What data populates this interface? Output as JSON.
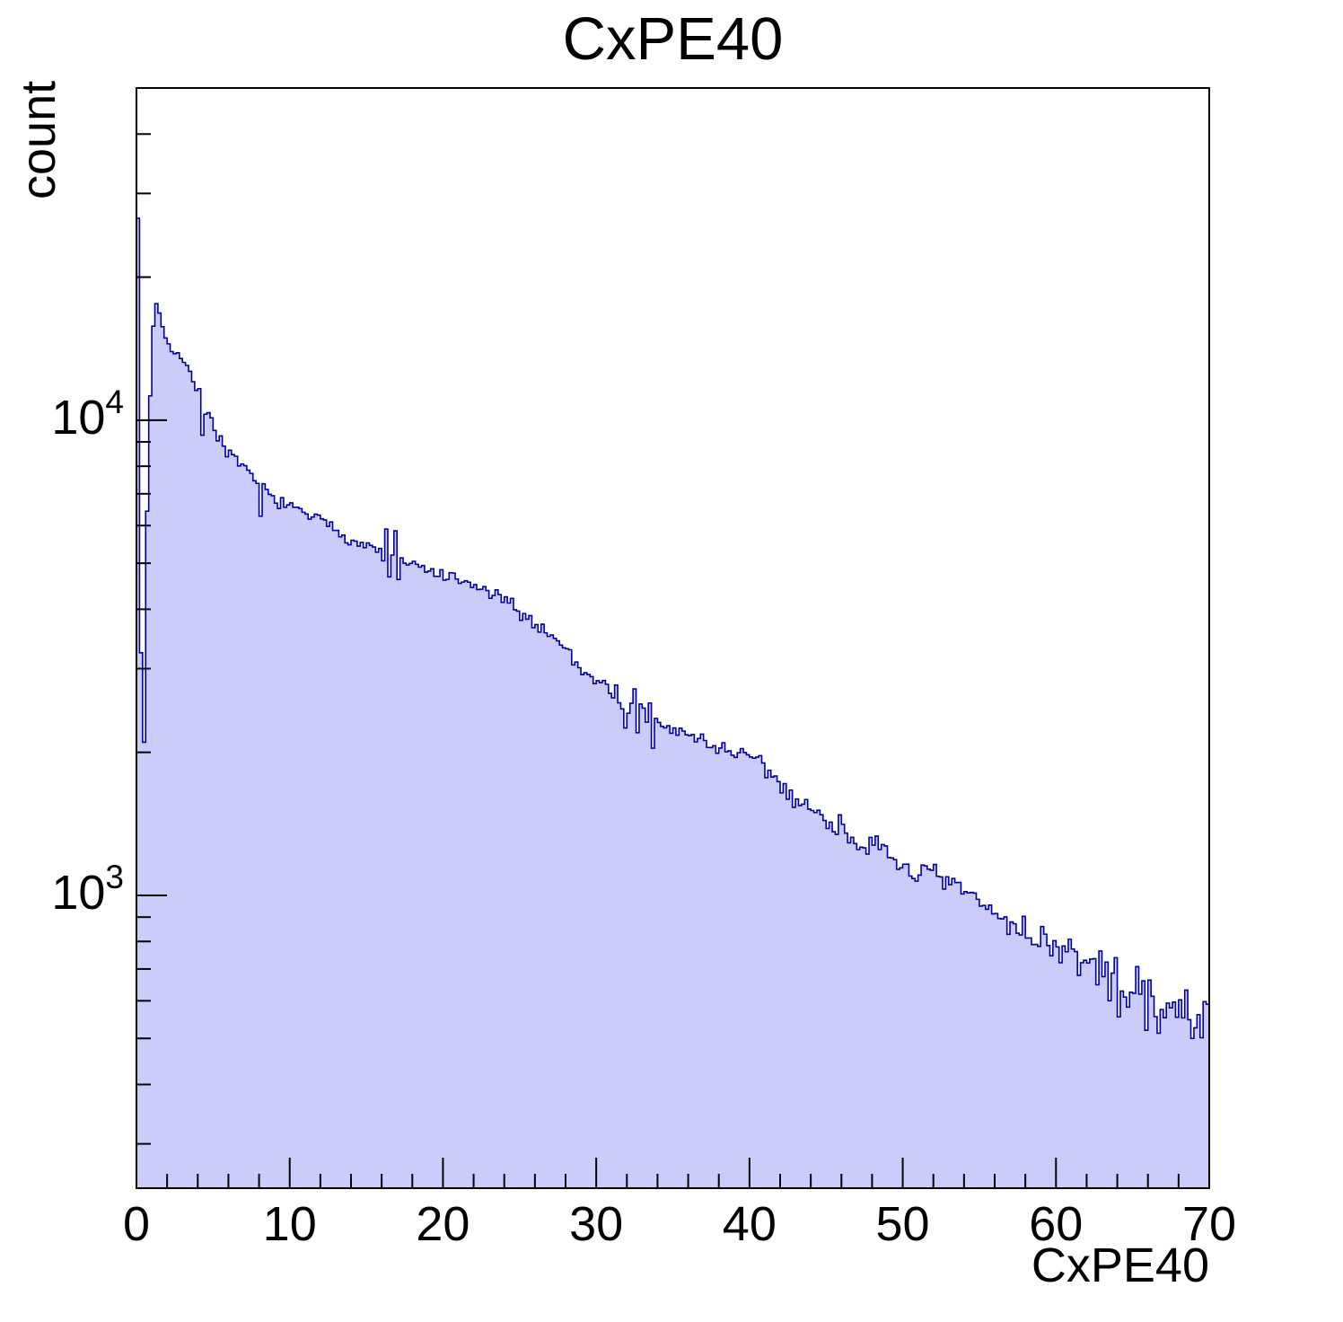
{
  "chart_data": {
    "type": "histogram",
    "title": "CxPE40",
    "xlabel": "CxPE40",
    "ylabel": "count",
    "x_range": [
      0,
      70
    ],
    "bin_width": 0.2,
    "y_scale": "log",
    "y_range": [
      242,
      50000
    ],
    "grid": false,
    "legend": false,
    "x_major_ticks": [
      0,
      10,
      20,
      30,
      40,
      50,
      60,
      70
    ],
    "x_minor_tick_step": 2,
    "y_major_ticks": [
      {
        "value": 1000,
        "label_base": "10",
        "label_exp": "3"
      },
      {
        "value": 10000,
        "label_base": "10",
        "label_exp": "4"
      }
    ],
    "colors": {
      "fill": "#ccccfa",
      "line": "#000099",
      "axis": "#000000",
      "text": "#000000",
      "background": "#ffffff"
    },
    "envelope_points": [
      [
        0.55,
        4500
      ],
      [
        0.7,
        6500
      ],
      [
        0.85,
        9800
      ],
      [
        1.0,
        14500
      ],
      [
        1.2,
        17600
      ],
      [
        1.45,
        17300
      ],
      [
        1.6,
        16300
      ],
      [
        1.9,
        14800
      ],
      [
        2.2,
        14250
      ],
      [
        2.6,
        13900
      ],
      [
        3.0,
        13350
      ],
      [
        3.5,
        12500
      ],
      [
        4.0,
        11500
      ],
      [
        4.5,
        10400
      ],
      [
        5.0,
        9800
      ],
      [
        5.5,
        9150
      ],
      [
        6.0,
        8550
      ],
      [
        6.5,
        8250
      ],
      [
        7.0,
        7880
      ],
      [
        7.5,
        7600
      ],
      [
        8.0,
        7350
      ],
      [
        8.5,
        7060
      ],
      [
        9.0,
        6820
      ],
      [
        10,
        6560
      ],
      [
        11,
        6350
      ],
      [
        12,
        6150
      ],
      [
        13,
        5890
      ],
      [
        14,
        5610
      ],
      [
        15,
        5430
      ],
      [
        16,
        5270
      ],
      [
        17,
        5060
      ],
      [
        18,
        4950
      ],
      [
        19,
        4810
      ],
      [
        20,
        4700
      ],
      [
        21,
        4580
      ],
      [
        22,
        4460
      ],
      [
        23,
        4350
      ],
      [
        24,
        4160
      ],
      [
        25,
        3960
      ],
      [
        26,
        3720
      ],
      [
        27,
        3560
      ],
      [
        28,
        3310
      ],
      [
        29,
        2990
      ],
      [
        30,
        2860
      ],
      [
        31,
        2690
      ],
      [
        32,
        2550
      ],
      [
        33,
        2410
      ],
      [
        34,
        2290
      ],
      [
        35,
        2230
      ],
      [
        36,
        2170
      ],
      [
        37,
        2110
      ],
      [
        38,
        2050
      ],
      [
        39,
        2000
      ],
      [
        40,
        1935
      ],
      [
        41,
        1855
      ],
      [
        42,
        1710
      ],
      [
        44,
        1510
      ],
      [
        46,
        1385
      ],
      [
        48,
        1255
      ],
      [
        50,
        1155
      ],
      [
        52,
        1085
      ],
      [
        54,
        1015
      ],
      [
        56,
        915
      ],
      [
        58,
        840
      ],
      [
        60,
        785
      ],
      [
        62,
        715
      ],
      [
        64,
        665
      ],
      [
        66,
        605
      ],
      [
        68,
        565
      ],
      [
        70,
        560
      ]
    ],
    "special_bins": [
      [
        0.0,
        26600
      ],
      [
        0.2,
        3240
      ],
      [
        0.4,
        2100
      ],
      [
        4.0,
        11650
      ],
      [
        4.2,
        9300
      ],
      [
        8.0,
        6280
      ],
      [
        16.2,
        5900
      ],
      [
        16.4,
        4680
      ],
      [
        16.8,
        5850
      ],
      [
        17.0,
        4620
      ],
      [
        31.8,
        2250
      ],
      [
        32.4,
        2720
      ],
      [
        32.6,
        2200
      ],
      [
        33.4,
        2540
      ],
      [
        33.6,
        2040
      ],
      [
        64.0,
        555
      ],
      [
        65.8,
        520
      ],
      [
        68.8,
        500
      ],
      [
        69.8,
        590
      ]
    ],
    "noise_factor": 2.8,
    "extra_noise_regions": [
      [
        4.1,
        5.9,
        1.8
      ],
      [
        15.5,
        17.5,
        1.4
      ],
      [
        31.0,
        34.5,
        1.5
      ],
      [
        62.0,
        70.0,
        1.25
      ]
    ],
    "random_seed": 7
  }
}
